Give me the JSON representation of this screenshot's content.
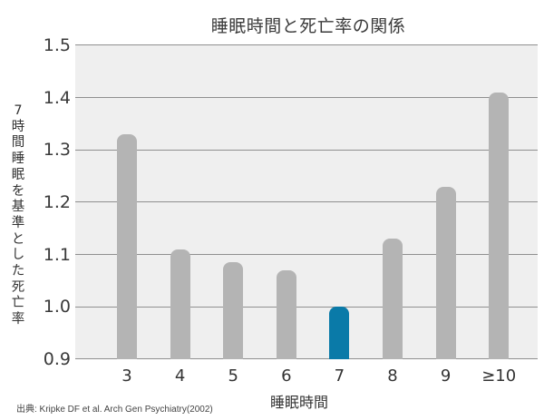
{
  "chart_data": {
    "type": "bar",
    "title": "睡眠時間と死亡率の関係",
    "xlabel": "睡眠時間",
    "ylabel": "7時間睡眠を基準とした死亡率",
    "categories": [
      "3",
      "4",
      "5",
      "6",
      "7",
      "8",
      "9",
      "≥10"
    ],
    "values": [
      1.33,
      1.11,
      1.085,
      1.07,
      1.0,
      1.13,
      1.23,
      1.41
    ],
    "highlight_index": 4,
    "ylim": [
      0.9,
      1.5
    ],
    "yticks": [
      "1.5",
      "1.4",
      "1.3",
      "1.2",
      "1.1",
      "1.0",
      "0.9"
    ],
    "grid": true,
    "colors": {
      "bar": "#b4b4b4",
      "highlight": "#0a7aa8",
      "plot_bg": "#efefef",
      "grid": "#8f8f8f"
    },
    "source": "出典: Kripke DF et al. Arch Gen Psychiatry(2002)"
  }
}
